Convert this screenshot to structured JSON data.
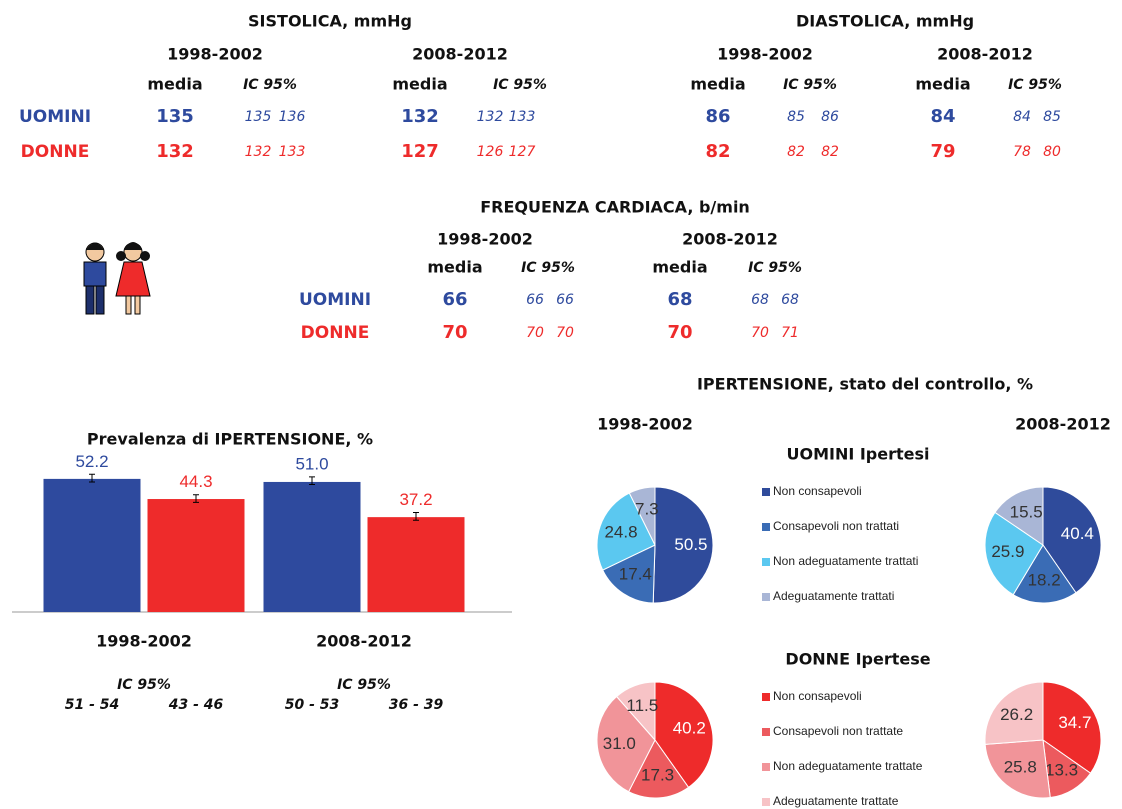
{
  "tables": [
    {
      "title": "SISTOLICA, mmHg",
      "periods": [
        "1998-2002",
        "2008-2012"
      ],
      "headers": [
        "media",
        "IC 95%"
      ],
      "rows": [
        {
          "label": "UOMINI",
          "color": "#2e4a9e",
          "media": [
            135,
            132
          ],
          "ic": [
            [
              135,
              136
            ],
            [
              132,
              133
            ]
          ]
        },
        {
          "label": "DONNE",
          "color": "#ee2b2b",
          "media": [
            132,
            127
          ],
          "ic": [
            [
              132,
              133
            ],
            [
              126,
              127
            ]
          ]
        }
      ]
    },
    {
      "title": "DIASTOLICA, mmHg",
      "periods": [
        "1998-2002",
        "2008-2012"
      ],
      "headers": [
        "media",
        "IC 95%"
      ],
      "rows": [
        {
          "color": "#2e4a9e",
          "media": [
            86,
            84
          ],
          "ic": [
            [
              85,
              86
            ],
            [
              84,
              85
            ]
          ]
        },
        {
          "color": "#ee2b2b",
          "media": [
            82,
            79
          ],
          "ic": [
            [
              82,
              82
            ],
            [
              78,
              80
            ]
          ]
        }
      ]
    },
    {
      "title": "FREQUENZA CARDIACA, b/min",
      "periods": [
        "1998-2002",
        "2008-2012"
      ],
      "headers": [
        "media",
        "IC 95%"
      ],
      "rows": [
        {
          "label": "UOMINI",
          "color": "#2e4a9e",
          "media": [
            66,
            68
          ],
          "ic": [
            [
              66,
              66
            ],
            [
              68,
              68
            ]
          ]
        },
        {
          "label": "DONNE",
          "color": "#ee2b2b",
          "media": [
            70,
            70
          ],
          "ic": [
            [
              70,
              70
            ],
            [
              70,
              71
            ]
          ]
        }
      ]
    }
  ],
  "chart_data": [
    {
      "type": "bar",
      "title": "Prevalenza di IPERTENSIONE, %",
      "categories": [
        "1998-2002",
        "2008-2012"
      ],
      "ylim": [
        0,
        60
      ],
      "ci_title": "IC 95%",
      "series": [
        {
          "color": "#2e4a9e",
          "values": [
            52.2,
            51.0
          ],
          "value_labels": [
            "52.2",
            "51.0"
          ],
          "ci": [
            [
              51,
              54
            ],
            [
              50,
              53
            ]
          ],
          "ci_labels": [
            "51 - 54",
            "50 - 53"
          ]
        },
        {
          "color": "#ee2b2b",
          "values": [
            44.3,
            37.2
          ],
          "ci": [
            [
              43,
              46
            ],
            [
              36,
              39
            ]
          ],
          "ci_labels": [
            "43 - 46",
            "36 - 39"
          ]
        }
      ]
    },
    {
      "type": "pie",
      "title": "IPERTENSIONE, stato del controllo, %",
      "subtitle": "UOMINI Ipertesi",
      "categories": [
        "Non consapevoli",
        "Consapevoli non trattati",
        "Non adeguatamente trattati",
        "Adeguatamente trattati"
      ],
      "colors": [
        "#2f4b9b",
        "#3a6cb5",
        "#5bc8f0",
        "#a9b6d6"
      ],
      "series": [
        {
          "name": "1998-2002",
          "values": [
            50.5,
            17.4,
            24.8,
            7.3
          ]
        },
        {
          "name": "2008-2012",
          "values": [
            40.4,
            18.2,
            25.9,
            15.5
          ]
        }
      ]
    },
    {
      "type": "pie",
      "subtitle": "DONNE Ipertese",
      "categories": [
        "Non consapevoli",
        "Consapevoli non trattate",
        "Non adeguatamente trattate",
        "Adeguatamente trattate"
      ],
      "colors": [
        "#ee2b2b",
        "#ec5a5e",
        "#f19499",
        "#f7c3c6"
      ],
      "series": [
        {
          "values": [
            40.2,
            17.3,
            31.0,
            11.5
          ],
          "value_labels": [
            "40.2",
            "17.3",
            "31.0",
            "11.5"
          ]
        },
        {
          "values": [
            34.7,
            13.3,
            25.8,
            26.2
          ]
        }
      ]
    }
  ]
}
